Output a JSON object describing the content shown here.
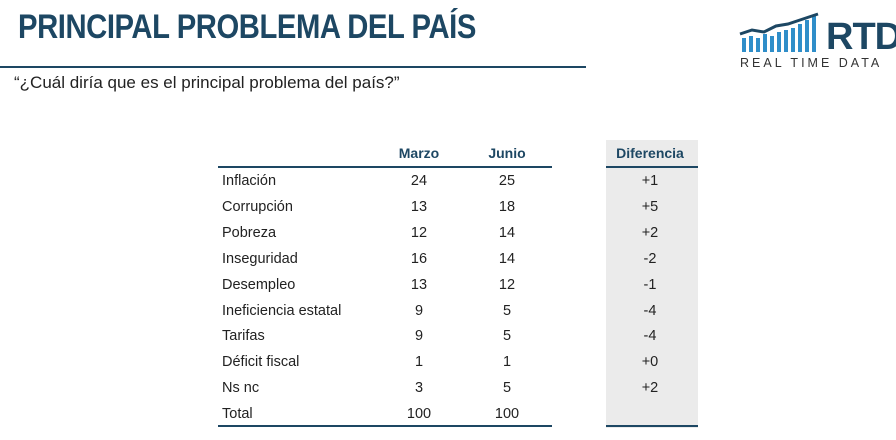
{
  "header": {
    "title": "PRINCIPAL PROBLEMA DEL PAÍS",
    "subtitle": "“¿Cuál diría que es el principal problema del país?”"
  },
  "logo": {
    "name": "RTD",
    "tagline": "REAL TIME DATA"
  },
  "table": {
    "columns": [
      "Marzo",
      "Junio",
      "Diferencia"
    ],
    "rows": [
      {
        "label": "Inflación",
        "marzo": "24",
        "junio": "25",
        "diferencia": "+1"
      },
      {
        "label": "Corrupción",
        "marzo": "13",
        "junio": "18",
        "diferencia": "+5"
      },
      {
        "label": "Pobreza",
        "marzo": "12",
        "junio": "14",
        "diferencia": "+2"
      },
      {
        "label": "Inseguridad",
        "marzo": "16",
        "junio": "14",
        "diferencia": "-2"
      },
      {
        "label": "Desempleo",
        "marzo": "13",
        "junio": "12",
        "diferencia": "-1"
      },
      {
        "label": "Ineficiencia estatal",
        "marzo": "9",
        "junio": "5",
        "diferencia": "-4"
      },
      {
        "label": "Tarifas",
        "marzo": "9",
        "junio": "5",
        "diferencia": "-4"
      },
      {
        "label": "Déficit fiscal",
        "marzo": "1",
        "junio": "1",
        "diferencia": "+0"
      },
      {
        "label": "Ns nc",
        "marzo": "3",
        "junio": "5",
        "diferencia": "+2"
      },
      {
        "label": "Total",
        "marzo": "100",
        "junio": "100",
        "diferencia": ""
      }
    ]
  },
  "colors": {
    "accent": "#1d4763",
    "logo_bars": "#2f8ec9",
    "diff_background": "#ebebeb"
  }
}
